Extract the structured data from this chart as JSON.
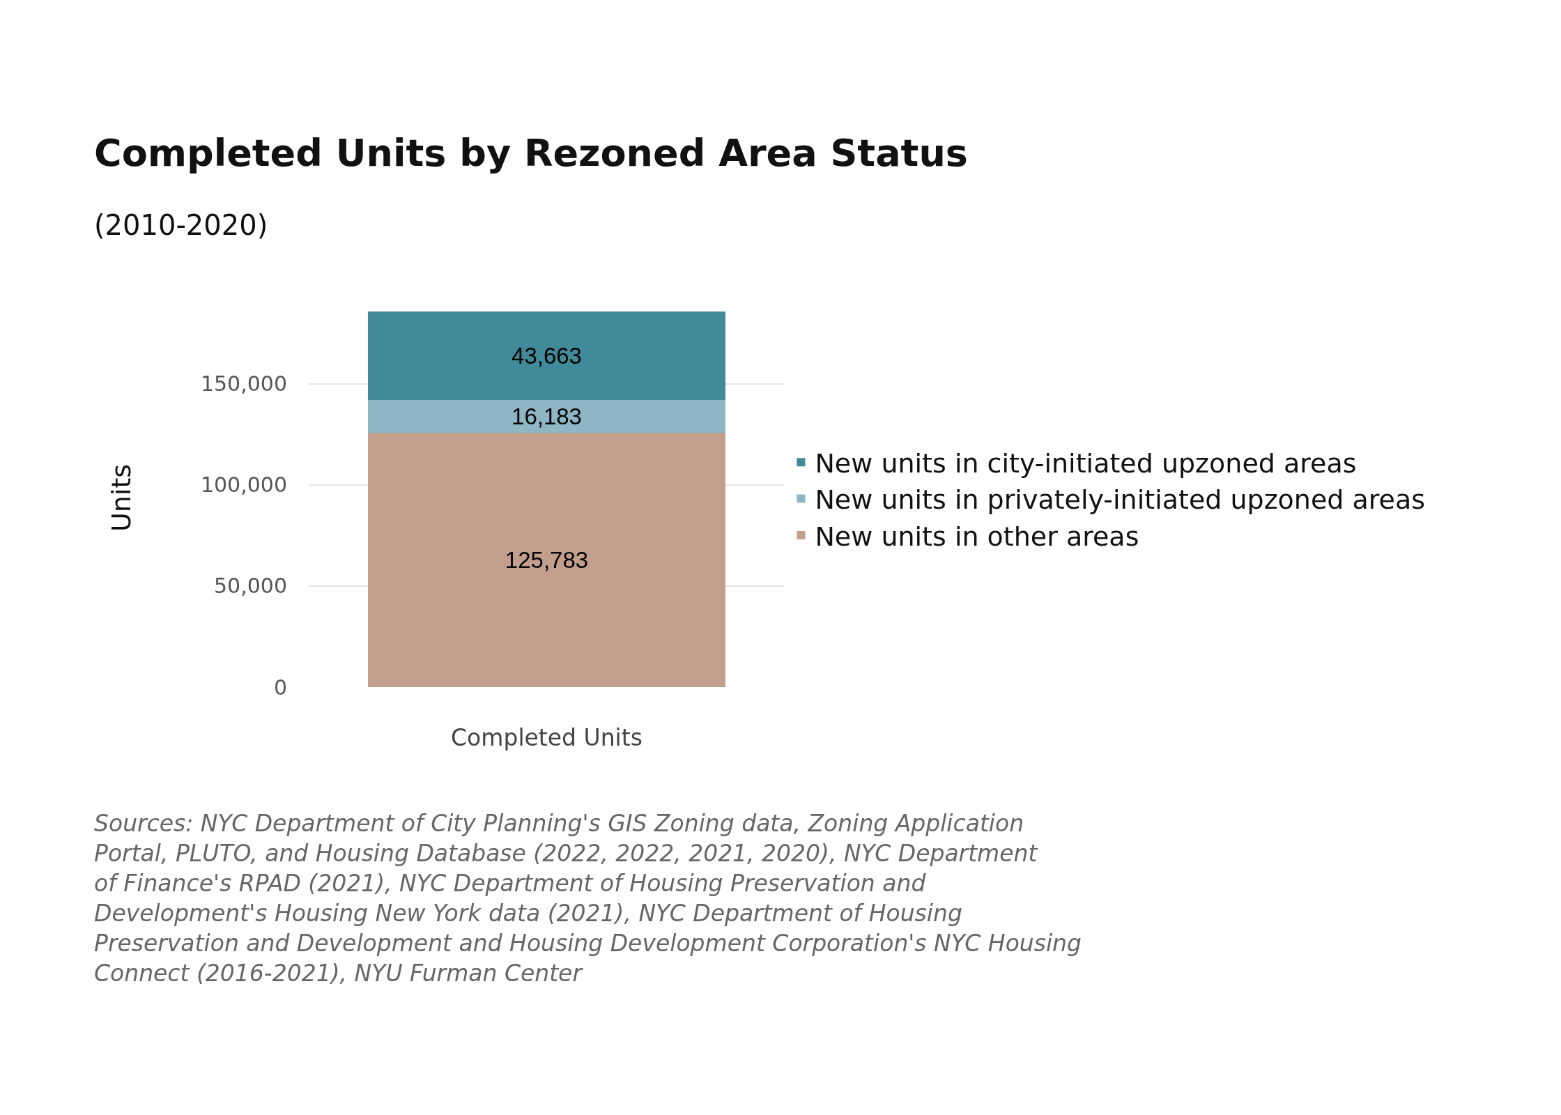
{
  "chart_data": {
    "type": "bar",
    "title": "Completed Units by Rezoned Area Status",
    "subtitle": "(2010-2020)",
    "ylabel": "Units",
    "categories": [
      "Completed Units"
    ],
    "stacked": true,
    "series": [
      {
        "name": "New units in other areas",
        "color": "#c49e8c",
        "values": [
          125783
        ],
        "value_labels": [
          "125,783"
        ]
      },
      {
        "name": "New units in privately-initiated upzoned areas",
        "color": "#8fb6c4",
        "values": [
          16183
        ],
        "value_labels": [
          "16,183"
        ]
      },
      {
        "name": "New units in city-initiated upzoned areas",
        "color": "#418a9a",
        "values": [
          43663
        ],
        "value_labels": [
          "43,663"
        ]
      }
    ],
    "ylim": [
      0,
      186000
    ],
    "yticks": [
      {
        "value": 0,
        "label": "0"
      },
      {
        "value": 50000,
        "label": "50,000"
      },
      {
        "value": 100000,
        "label": "100,000"
      },
      {
        "value": 150000,
        "label": "150,000"
      }
    ],
    "grid": "y",
    "legend": "right",
    "annotations": [
      "Sources: NYC Department of City Planning's GIS Zoning data, Zoning Application Portal, PLUTO, and Housing Database (2022, 2022, 2021, 2020), NYC Department of Finance's RPAD (2021), NYC Department of Housing Preservation and Development's Housing New York data (2021), NYC Department of Housing Preservation and Development and Housing Development Corporation's NYC Housing Connect (2016-2021), NYU Furman Center"
    ]
  }
}
